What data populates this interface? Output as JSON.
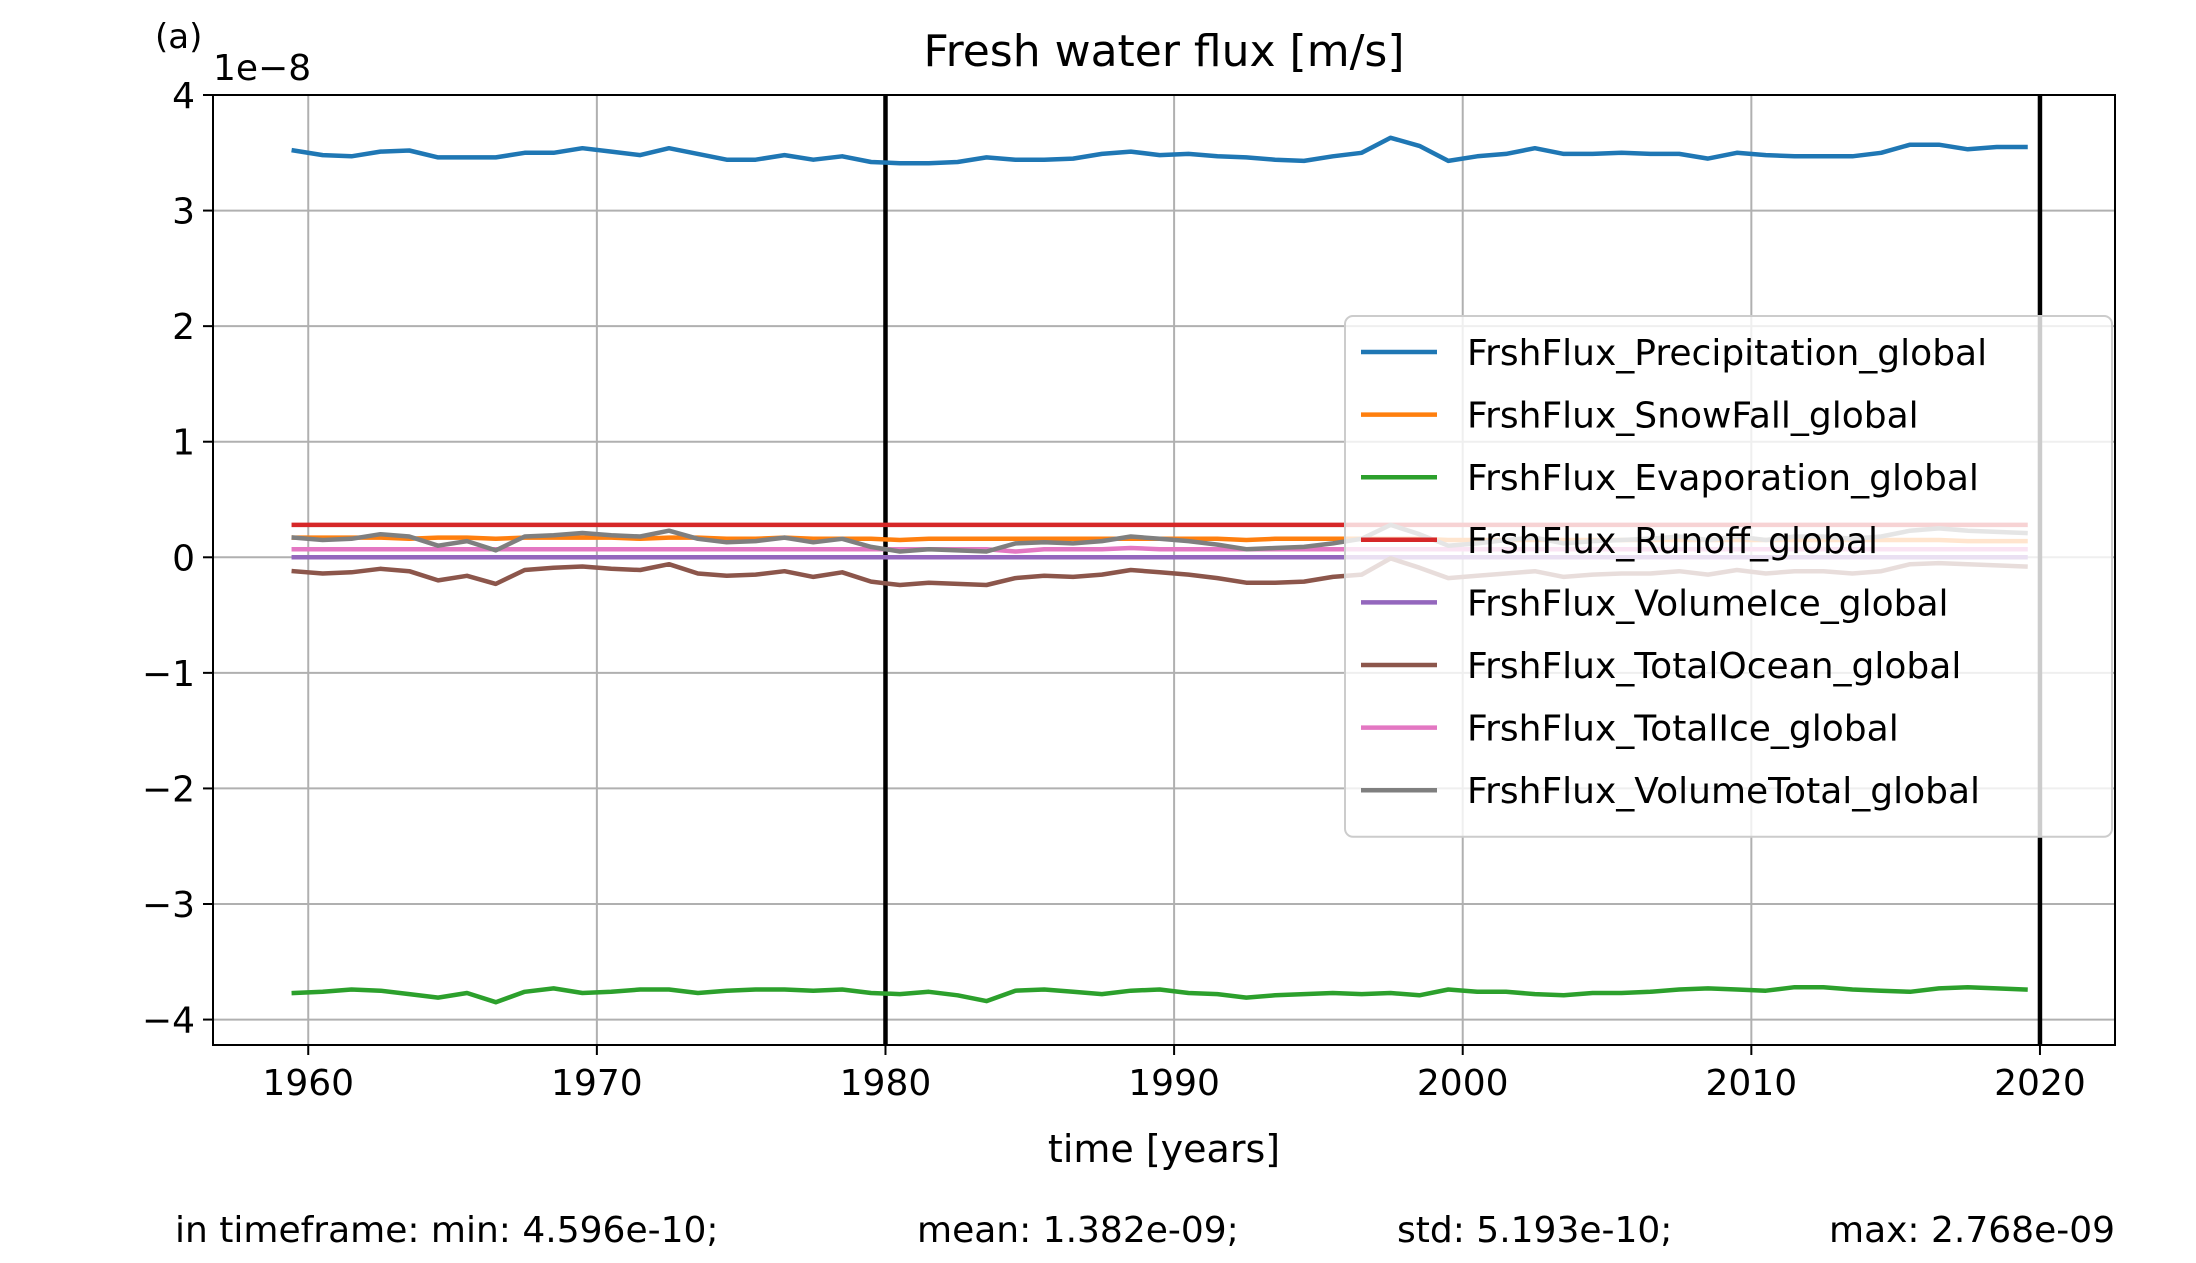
{
  "panel_label": "(a)",
  "stats": {
    "min": "in timeframe: min: 4.596e-10;",
    "mean": "mean: 1.382e-09;",
    "std": "std: 5.193e-10;",
    "max": "max: 2.768e-09"
  },
  "chart_data": {
    "type": "line",
    "title": "Fresh water flux [m/s]",
    "xlabel": "time [years]",
    "ylabel": "",
    "y_offset_label": "1e−8",
    "xlim": [
      1956.7,
      2022.6
    ],
    "ylim": [
      -4.22,
      4.0
    ],
    "x_ticks": [
      1960,
      1970,
      1980,
      1990,
      2000,
      2010,
      2020
    ],
    "x_tick_labels": [
      "1960",
      "1970",
      "1980",
      "1990",
      "2000",
      "2010",
      "2020"
    ],
    "y_ticks": [
      4,
      3,
      2,
      1,
      0,
      -1,
      -2,
      -3,
      -4
    ],
    "y_tick_labels": [
      "4",
      "3",
      "2",
      "1",
      "0",
      "−1",
      "−2",
      "−3",
      "−4"
    ],
    "grid": true,
    "legend_position": "center-right",
    "vertical_lines": [
      1980,
      2020
    ],
    "x": [
      1959.5,
      1960.5,
      1961.5,
      1962.5,
      1963.5,
      1964.5,
      1965.5,
      1966.5,
      1967.5,
      1968.5,
      1969.5,
      1970.5,
      1971.5,
      1972.5,
      1973.5,
      1974.5,
      1975.5,
      1976.5,
      1977.5,
      1978.5,
      1979.5,
      1980.5,
      1981.5,
      1982.5,
      1983.5,
      1984.5,
      1985.5,
      1986.5,
      1987.5,
      1988.5,
      1989.5,
      1990.5,
      1991.5,
      1992.5,
      1993.5,
      1994.5,
      1995.5,
      1996.5,
      1997.5,
      1998.5,
      1999.5,
      2000.5,
      2001.5,
      2002.5,
      2003.5,
      2004.5,
      2005.5,
      2006.5,
      2007.5,
      2008.5,
      2009.5,
      2010.5,
      2011.5,
      2012.5,
      2013.5,
      2014.5,
      2015.5,
      2016.5,
      2017.5,
      2018.5,
      2019.5
    ],
    "series": [
      {
        "name": "FrshFlux_Precipitation_global",
        "color": "#1f77b4",
        "values": [
          3.52,
          3.48,
          3.47,
          3.51,
          3.52,
          3.46,
          3.46,
          3.46,
          3.5,
          3.5,
          3.54,
          3.51,
          3.48,
          3.54,
          3.49,
          3.44,
          3.44,
          3.48,
          3.44,
          3.47,
          3.42,
          3.41,
          3.41,
          3.42,
          3.46,
          3.44,
          3.44,
          3.45,
          3.49,
          3.51,
          3.48,
          3.49,
          3.47,
          3.46,
          3.44,
          3.43,
          3.47,
          3.5,
          3.63,
          3.56,
          3.43,
          3.47,
          3.49,
          3.54,
          3.49,
          3.49,
          3.5,
          3.49,
          3.49,
          3.45,
          3.5,
          3.48,
          3.47,
          3.47,
          3.47,
          3.5,
          3.57,
          3.57,
          3.53,
          3.55,
          3.55
        ]
      },
      {
        "name": "FrshFlux_SnowFall_global",
        "color": "#ff7f0e",
        "values": [
          0.17,
          0.17,
          0.17,
          0.17,
          0.16,
          0.17,
          0.17,
          0.16,
          0.17,
          0.17,
          0.17,
          0.17,
          0.16,
          0.17,
          0.17,
          0.16,
          0.16,
          0.17,
          0.16,
          0.16,
          0.16,
          0.15,
          0.16,
          0.16,
          0.16,
          0.16,
          0.16,
          0.16,
          0.16,
          0.16,
          0.16,
          0.16,
          0.16,
          0.15,
          0.16,
          0.16,
          0.16,
          0.16,
          0.16,
          0.16,
          0.15,
          0.15,
          0.15,
          0.15,
          0.15,
          0.15,
          0.15,
          0.15,
          0.15,
          0.15,
          0.15,
          0.15,
          0.15,
          0.15,
          0.15,
          0.15,
          0.15,
          0.15,
          0.14,
          0.14,
          0.14
        ]
      },
      {
        "name": "FrshFlux_Evaporation_global",
        "color": "#2ca02c",
        "values": [
          -3.77,
          -3.76,
          -3.74,
          -3.75,
          -3.78,
          -3.81,
          -3.77,
          -3.85,
          -3.76,
          -3.73,
          -3.77,
          -3.76,
          -3.74,
          -3.74,
          -3.77,
          -3.75,
          -3.74,
          -3.74,
          -3.75,
          -3.74,
          -3.77,
          -3.78,
          -3.76,
          -3.79,
          -3.84,
          -3.75,
          -3.74,
          -3.76,
          -3.78,
          -3.75,
          -3.74,
          -3.77,
          -3.78,
          -3.81,
          -3.79,
          -3.78,
          -3.77,
          -3.78,
          -3.77,
          -3.79,
          -3.74,
          -3.76,
          -3.76,
          -3.78,
          -3.79,
          -3.77,
          -3.77,
          -3.76,
          -3.74,
          -3.73,
          -3.74,
          -3.75,
          -3.72,
          -3.72,
          -3.74,
          -3.75,
          -3.76,
          -3.73,
          -3.72,
          -3.73,
          -3.74
        ]
      },
      {
        "name": "FrshFlux_Runoff_global",
        "color": "#d62728",
        "values": [
          0.28,
          0.28,
          0.28,
          0.28,
          0.28,
          0.28,
          0.28,
          0.28,
          0.28,
          0.28,
          0.28,
          0.28,
          0.28,
          0.28,
          0.28,
          0.28,
          0.28,
          0.28,
          0.28,
          0.28,
          0.28,
          0.28,
          0.28,
          0.28,
          0.28,
          0.28,
          0.28,
          0.28,
          0.28,
          0.28,
          0.28,
          0.28,
          0.28,
          0.28,
          0.28,
          0.28,
          0.28,
          0.28,
          0.28,
          0.28,
          0.28,
          0.28,
          0.28,
          0.28,
          0.28,
          0.28,
          0.28,
          0.28,
          0.28,
          0.28,
          0.28,
          0.28,
          0.28,
          0.28,
          0.28,
          0.28,
          0.28,
          0.28,
          0.28,
          0.28,
          0.28
        ]
      },
      {
        "name": "FrshFlux_VolumeIce_global",
        "color": "#9467bd",
        "values": [
          0,
          0,
          0,
          0,
          0,
          0,
          0,
          0,
          0,
          0,
          0,
          0,
          0,
          0,
          0,
          0,
          0,
          0,
          0,
          0,
          0,
          0,
          0,
          0,
          0,
          0,
          0,
          0,
          0,
          0,
          0,
          0,
          0,
          0,
          0,
          0,
          0,
          0,
          0,
          0,
          0,
          0,
          0,
          0,
          0,
          0,
          0,
          0,
          0,
          0,
          0,
          0,
          0,
          0,
          0,
          0,
          0,
          0,
          0,
          0,
          0
        ]
      },
      {
        "name": "FrshFlux_TotalOcean_global",
        "color": "#8c564b",
        "values": [
          -0.12,
          -0.14,
          -0.13,
          -0.1,
          -0.12,
          -0.2,
          -0.16,
          -0.23,
          -0.11,
          -0.09,
          -0.08,
          -0.1,
          -0.11,
          -0.06,
          -0.14,
          -0.16,
          -0.15,
          -0.12,
          -0.17,
          -0.13,
          -0.21,
          -0.24,
          -0.22,
          -0.23,
          -0.24,
          -0.18,
          -0.16,
          -0.17,
          -0.15,
          -0.11,
          -0.13,
          -0.15,
          -0.18,
          -0.22,
          -0.22,
          -0.21,
          -0.17,
          -0.15,
          -0.01,
          -0.09,
          -0.18,
          -0.16,
          -0.14,
          -0.12,
          -0.17,
          -0.15,
          -0.14,
          -0.14,
          -0.12,
          -0.15,
          -0.11,
          -0.14,
          -0.12,
          -0.12,
          -0.14,
          -0.12,
          -0.06,
          -0.05,
          -0.06,
          -0.07,
          -0.08
        ]
      },
      {
        "name": "FrshFlux_TotalIce_global",
        "color": "#e377c2",
        "values": [
          0.07,
          0.07,
          0.07,
          0.07,
          0.07,
          0.07,
          0.07,
          0.07,
          0.07,
          0.07,
          0.07,
          0.07,
          0.07,
          0.07,
          0.07,
          0.07,
          0.07,
          0.07,
          0.07,
          0.07,
          0.07,
          0.07,
          0.07,
          0.07,
          0.07,
          0.05,
          0.07,
          0.07,
          0.07,
          0.08,
          0.07,
          0.07,
          0.07,
          0.07,
          0.07,
          0.07,
          0.07,
          0.07,
          0.07,
          0.07,
          0.07,
          0.07,
          0.07,
          0.07,
          0.07,
          0.07,
          0.07,
          0.07,
          0.07,
          0.07,
          0.07,
          0.07,
          0.07,
          0.07,
          0.07,
          0.07,
          0.07,
          0.07,
          0.07,
          0.07,
          0.07
        ]
      },
      {
        "name": "FrshFlux_VolumeTotal_global",
        "color": "#7f7f7f",
        "values": [
          0.17,
          0.15,
          0.16,
          0.2,
          0.18,
          0.1,
          0.14,
          0.06,
          0.18,
          0.19,
          0.21,
          0.19,
          0.18,
          0.23,
          0.16,
          0.13,
          0.14,
          0.17,
          0.13,
          0.16,
          0.09,
          0.05,
          0.07,
          0.06,
          0.05,
          0.12,
          0.13,
          0.12,
          0.14,
          0.18,
          0.16,
          0.14,
          0.11,
          0.07,
          0.08,
          0.09,
          0.12,
          0.16,
          0.28,
          0.2,
          0.1,
          0.12,
          0.15,
          0.17,
          0.12,
          0.14,
          0.15,
          0.16,
          0.18,
          0.15,
          0.18,
          0.15,
          0.18,
          0.18,
          0.16,
          0.18,
          0.23,
          0.25,
          0.23,
          0.22,
          0.21
        ]
      }
    ]
  }
}
